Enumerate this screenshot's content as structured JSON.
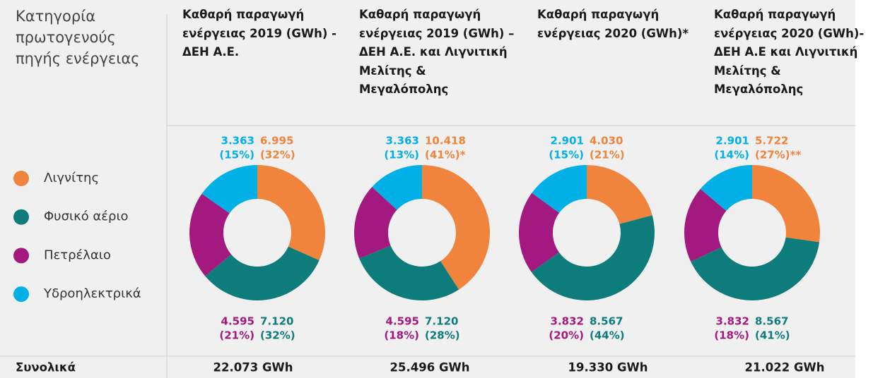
{
  "legend_title": "Κατηγορία πρωτογενούς πηγής ενέργειας",
  "total_label": "Συνολικά",
  "chart_data": [
    {
      "type": "pie",
      "title": "Καθαρή παραγωγή ενέργειας 2019 (GWh) - ΔΕΗ Α.Ε.",
      "categories": [
        "Λιγνίτης",
        "Φυσικό αέριο",
        "Πετρέλαιο",
        "Υδροηλεκτρικά"
      ],
      "colors": [
        "#f0843c",
        "#0e7c7b",
        "#a3197f",
        "#00b0e6"
      ],
      "values": [
        6995,
        7120,
        4595,
        3363
      ],
      "value_labels": [
        "6.995",
        "7.120",
        "4.595",
        "3.363"
      ],
      "percents": [
        32,
        32,
        21,
        15
      ],
      "percent_labels": [
        "(32%)",
        "(32%)",
        "(21%)",
        "(15%)"
      ],
      "total": 22073,
      "total_value_label": "22.073 GWh"
    },
    {
      "type": "pie",
      "title": "Καθαρή παραγωγή ενέργειας 2019 (GWh) – ΔΕΗ Α.Ε. και Λιγνιτική Μελίτης & Μεγαλόπολης",
      "categories": [
        "Λιγνίτης",
        "Φυσικό αέριο",
        "Πετρέλαιο",
        "Υδροηλεκτρικά"
      ],
      "colors": [
        "#f0843c",
        "#0e7c7b",
        "#a3197f",
        "#00b0e6"
      ],
      "values": [
        10418,
        7120,
        4595,
        3363
      ],
      "value_labels": [
        "10.418",
        "7.120",
        "4.595",
        "3.363"
      ],
      "percents": [
        41,
        28,
        18,
        13
      ],
      "percent_labels": [
        "(41%)*",
        "(28%)",
        "(18%)",
        "(13%)"
      ],
      "total": 25496,
      "total_value_label": "25.496 GWh"
    },
    {
      "type": "pie",
      "title": "Καθαρή παραγωγή ενέργειας 2020 (GWh)*",
      "categories": [
        "Λιγνίτης",
        "Φυσικό αέριο",
        "Πετρέλαιο",
        "Υδροηλεκτρικά"
      ],
      "colors": [
        "#f0843c",
        "#0e7c7b",
        "#a3197f",
        "#00b0e6"
      ],
      "values": [
        4030,
        8567,
        3832,
        2901
      ],
      "value_labels": [
        "4.030",
        "8.567",
        "3.832",
        "2.901"
      ],
      "percents": [
        21,
        44,
        20,
        15
      ],
      "percent_labels": [
        "(21%)",
        "(44%)",
        "(20%)",
        "(15%)"
      ],
      "total": 19330,
      "total_value_label": "19.330 GWh"
    },
    {
      "type": "pie",
      "title": "Καθαρή παραγωγή ενέργειας 2020 (GWh)-ΔΕΗ Α.Ε και Λιγνιτική Μελίτης & Μεγαλόπολης",
      "categories": [
        "Λιγνίτης",
        "Φυσικό αέριο",
        "Πετρέλαιο",
        "Υδροηλεκτρικά"
      ],
      "colors": [
        "#f0843c",
        "#0e7c7b",
        "#a3197f",
        "#00b0e6"
      ],
      "values": [
        5722,
        8567,
        3832,
        2901
      ],
      "value_labels": [
        "5.722",
        "8.567",
        "3.832",
        "2.901"
      ],
      "percents": [
        27,
        41,
        18,
        14
      ],
      "percent_labels": [
        "(27%)**",
        "(41%)",
        "(18%)",
        "(14%)"
      ],
      "total": 21022,
      "total_value_label": "21.022 GWh"
    }
  ]
}
